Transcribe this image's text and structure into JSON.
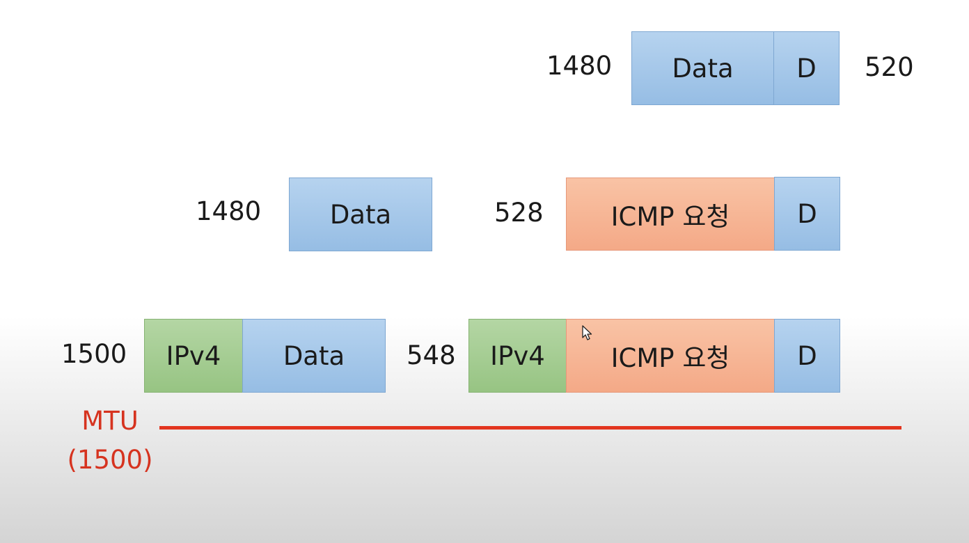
{
  "row1": {
    "size_left": "1480",
    "data_label": "Data",
    "d_label": "D",
    "size_right": "520"
  },
  "row2": {
    "size_left": "1480",
    "data_label": "Data",
    "size_right": "528",
    "icmp_label": "ICMP 요청",
    "d_label": "D"
  },
  "row3": {
    "size_left": "1500",
    "ipv4_label": "IPv4",
    "data_label": "Data",
    "size_right": "548",
    "ipv4_label_right": "IPv4",
    "icmp_label": "ICMP 요청",
    "d_label": "D"
  },
  "mtu": {
    "label": "MTU",
    "value": "(1500)"
  },
  "colors": {
    "data_blue": "#a6c8ea",
    "ipv4_green": "#a6cd93",
    "icmp_orange": "#f7b595",
    "mtu_red": "#e2341e"
  }
}
